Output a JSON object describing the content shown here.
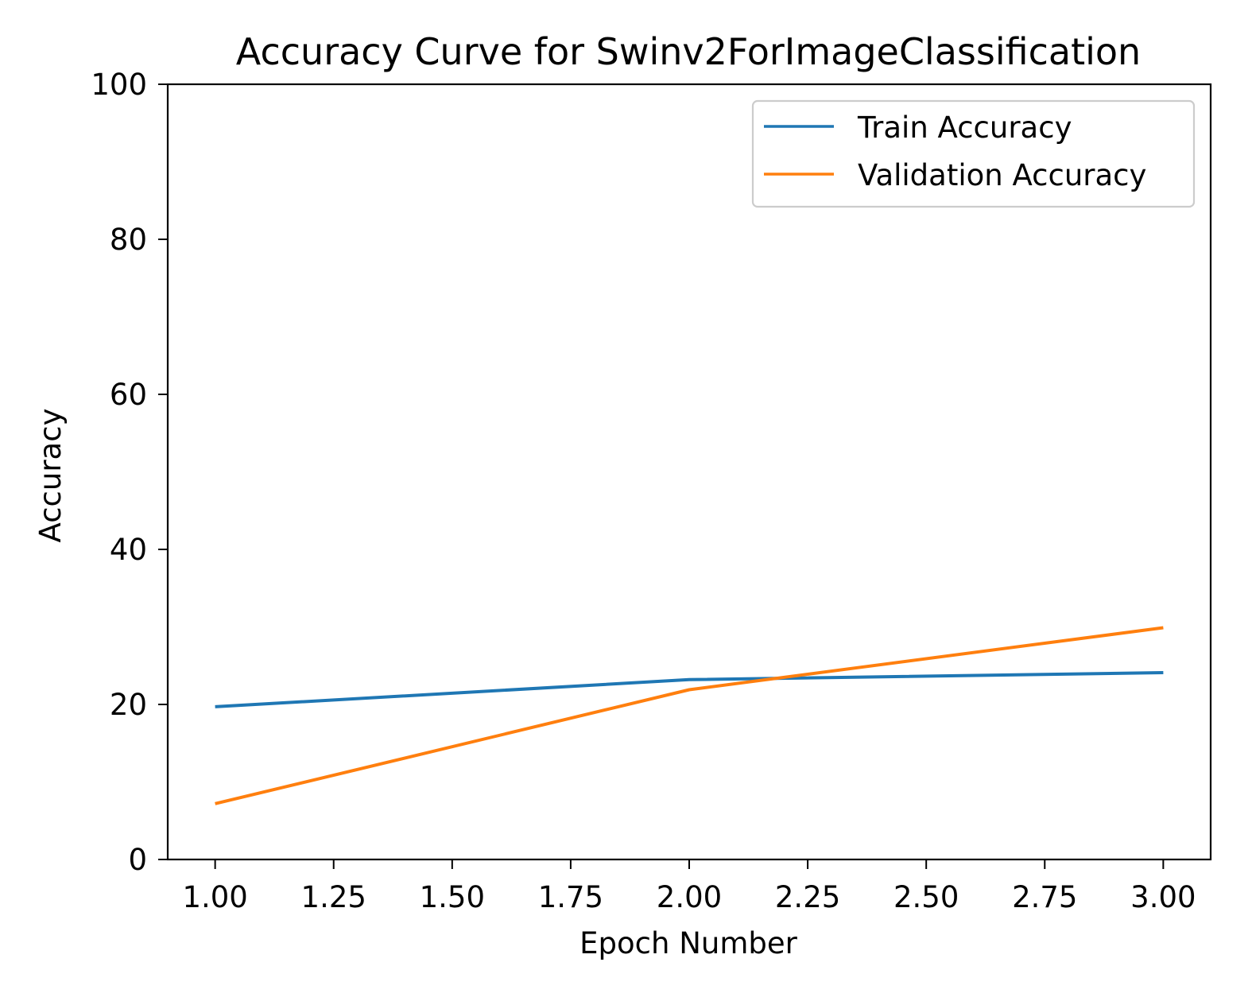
{
  "chart_data": {
    "type": "line",
    "title": "Accuracy Curve for  Swinv2ForImageClassification",
    "xlabel": "Epoch Number",
    "ylabel": "Accuracy",
    "xlim": [
      0.9,
      3.1
    ],
    "ylim": [
      0,
      100
    ],
    "xticks": [
      "1.00",
      "1.25",
      "1.50",
      "1.75",
      "2.00",
      "2.25",
      "2.50",
      "2.75",
      "3.00"
    ],
    "yticks": [
      "0",
      "20",
      "40",
      "60",
      "80",
      "100"
    ],
    "x": [
      1,
      2,
      3
    ],
    "series": [
      {
        "name": "Train Accuracy",
        "color": "#1f77b4",
        "values": [
          19.7,
          23.2,
          24.1
        ]
      },
      {
        "name": "Validation Accuracy",
        "color": "#ff7f0e",
        "values": [
          7.2,
          21.9,
          29.9
        ]
      }
    ],
    "legend_position": "top-right",
    "grid": false
  }
}
